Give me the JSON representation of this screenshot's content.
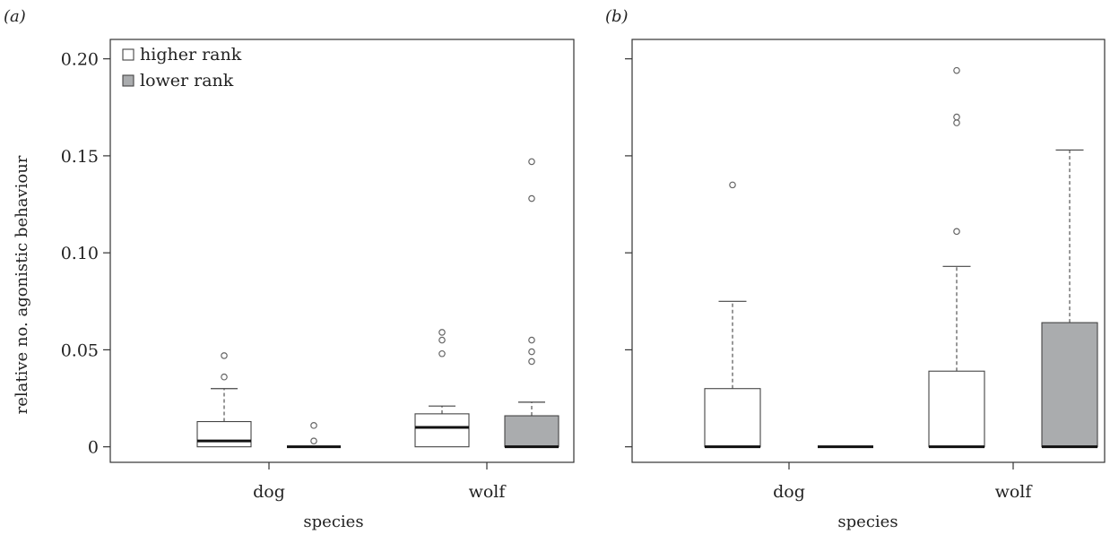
{
  "chart_data": [
    {
      "type": "boxplot",
      "panel_label": "(a)",
      "xlabel": "species",
      "ylabel": "relative no. agonistic behaviour",
      "categories": [
        "dog",
        "wolf"
      ],
      "ylim": [
        -0.008,
        0.21
      ],
      "yticks": [
        0,
        0.05,
        0.1,
        0.15,
        0.2
      ],
      "ytick_labels": [
        "0",
        "0.05",
        "0.10",
        "0.15",
        "0.20"
      ],
      "legend": {
        "placement": "top-left",
        "entries": [
          "higher rank",
          "lower rank"
        ]
      },
      "series": [
        {
          "name": "higher rank",
          "color": "#ffffff",
          "boxes": [
            {
              "category": "dog",
              "whisker_low": 0,
              "q1": 0,
              "median": 0.003,
              "q3": 0.013,
              "whisker_high": 0.03,
              "outliers": [
                0.036,
                0.047
              ]
            },
            {
              "category": "wolf",
              "whisker_low": 0,
              "q1": 0,
              "median": 0.01,
              "q3": 0.017,
              "whisker_high": 0.021,
              "outliers": [
                0.048,
                0.055,
                0.059
              ]
            }
          ]
        },
        {
          "name": "lower rank",
          "color": "#aaacae",
          "boxes": [
            {
              "category": "dog",
              "whisker_low": 0,
              "q1": 0,
              "median": 0,
              "q3": 0,
              "whisker_high": 0,
              "outliers": [
                0.003,
                0.011
              ]
            },
            {
              "category": "wolf",
              "whisker_low": 0,
              "q1": 0,
              "median": 0,
              "q3": 0.016,
              "whisker_high": 0.023,
              "outliers": [
                0.044,
                0.049,
                0.055,
                0.128,
                0.147
              ]
            }
          ]
        }
      ]
    },
    {
      "type": "boxplot",
      "panel_label": "(b)",
      "xlabel": "species",
      "ylabel": "",
      "categories": [
        "dog",
        "wolf"
      ],
      "ylim": [
        -0.008,
        0.21
      ],
      "yticks": [
        0,
        0.05,
        0.1,
        0.15,
        0.2
      ],
      "ytick_labels": [],
      "series": [
        {
          "name": "higher rank",
          "color": "#ffffff",
          "boxes": [
            {
              "category": "dog",
              "whisker_low": 0,
              "q1": 0,
              "median": 0,
              "q3": 0.03,
              "whisker_high": 0.075,
              "outliers": [
                0.135
              ]
            },
            {
              "category": "wolf",
              "whisker_low": 0,
              "q1": 0,
              "median": 0,
              "q3": 0.039,
              "whisker_high": 0.093,
              "outliers": [
                0.111,
                0.167,
                0.17,
                0.194
              ]
            }
          ]
        },
        {
          "name": "lower rank",
          "color": "#aaacae",
          "boxes": [
            {
              "category": "dog",
              "whisker_low": 0,
              "q1": 0,
              "median": 0,
              "q3": 0,
              "whisker_high": 0,
              "outliers": []
            },
            {
              "category": "wolf",
              "whisker_low": 0,
              "q1": 0,
              "median": 0,
              "q3": 0.064,
              "whisker_high": 0.153,
              "outliers": []
            }
          ]
        }
      ]
    }
  ]
}
